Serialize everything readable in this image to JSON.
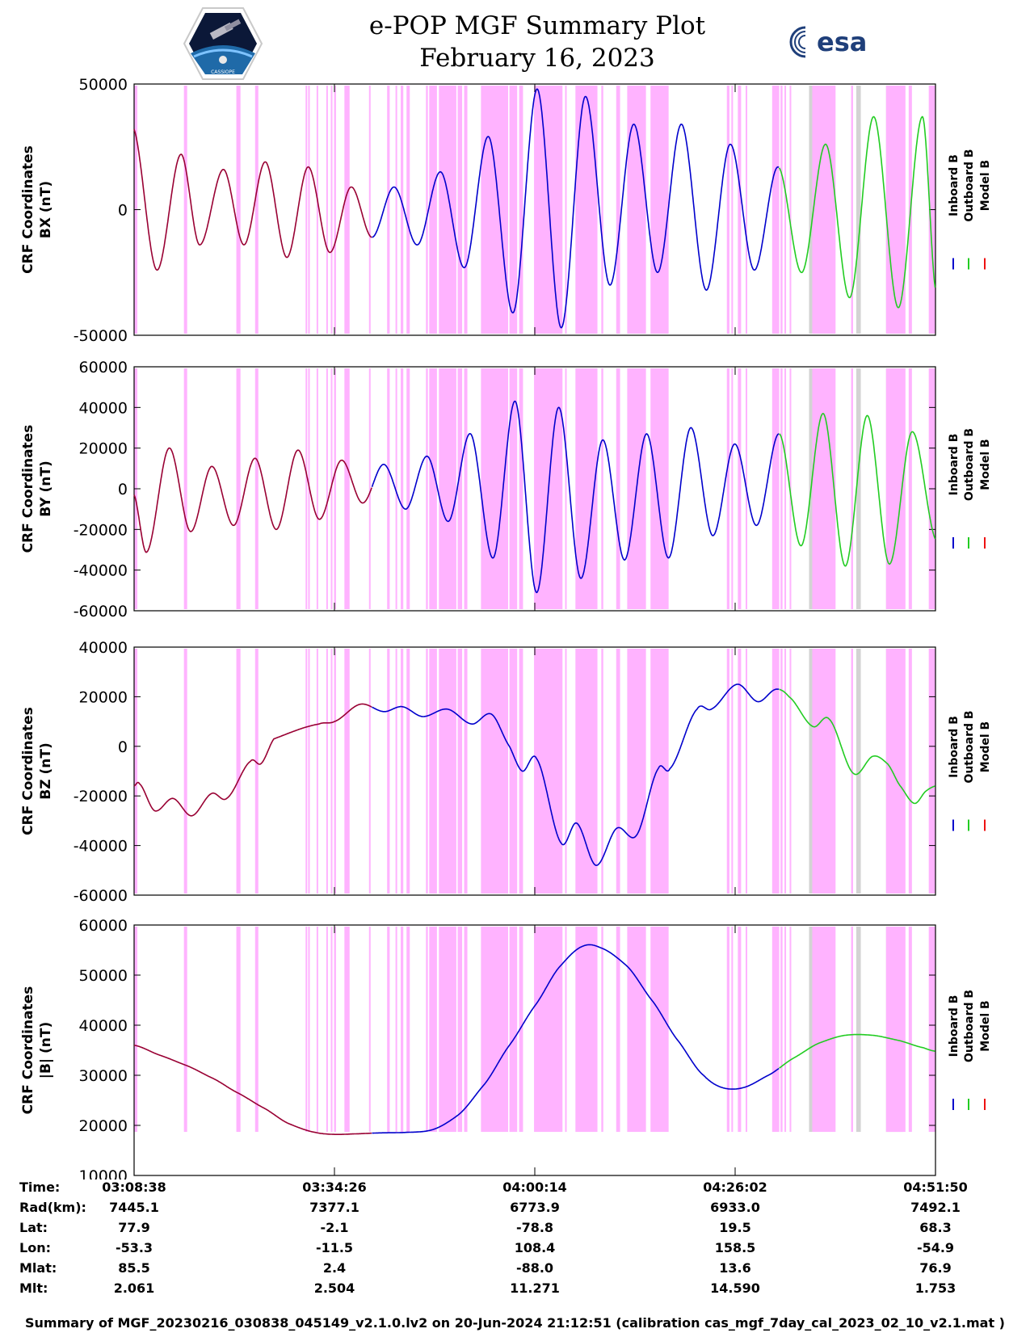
{
  "header": {
    "title_line1": "e-POP MGF Summary Plot",
    "title_line2": "February 16, 2023",
    "logo_left_text": "CASSIOPE",
    "logo_right_text": "esa"
  },
  "colors": {
    "inboard": "#0000cc",
    "outboard": "#22cc22",
    "model": "#ee1111",
    "model_overlay": "#990033",
    "highlight_magenta": "#ffb3ff",
    "highlight_gray": "#d3d3d3"
  },
  "chart_data": {
    "type": "line",
    "x_range_seconds": [
      0,
      6192
    ],
    "x_ticks": [
      {
        "t": 0,
        "label": "03:08:38"
      },
      {
        "t": 1548,
        "label": "03:34:26"
      },
      {
        "t": 3096,
        "label": "04:00:14"
      },
      {
        "t": 4644,
        "label": "04:26:02"
      },
      {
        "t": 6192,
        "label": "04:51:50"
      }
    ],
    "legend": [
      "Inboard B",
      "Outboard B",
      "Model B"
    ],
    "segments": [
      {
        "series": "Model B (overlay)",
        "t_start": 0,
        "t_end": 1838
      },
      {
        "series": "Inboard B",
        "t_start": 1838,
        "t_end": 4985
      },
      {
        "series": "Outboard B",
        "t_start": 4985,
        "t_end": 6192
      }
    ],
    "highlight_bands": [
      {
        "t": [
          0,
          25
        ],
        "color": "magenta"
      },
      {
        "t": [
          385,
          410
        ],
        "color": "magenta"
      },
      {
        "t": [
          790,
          822
        ],
        "color": "magenta"
      },
      {
        "t": [
          935,
          960
        ],
        "color": "magenta"
      },
      {
        "t": [
          1325,
          1335
        ],
        "color": "magenta"
      },
      {
        "t": [
          1345,
          1352
        ],
        "color": "magenta"
      },
      {
        "t": [
          1410,
          1420
        ],
        "color": "magenta"
      },
      {
        "t": [
          1485,
          1493
        ],
        "color": "magenta"
      },
      {
        "t": [
          1520,
          1530
        ],
        "color": "magenta"
      },
      {
        "t": [
          1545,
          1560
        ],
        "color": "magenta"
      },
      {
        "t": [
          1625,
          1665
        ],
        "color": "magenta"
      },
      {
        "t": [
          1815,
          1825
        ],
        "color": "magenta"
      },
      {
        "t": [
          1955,
          1975
        ],
        "color": "magenta"
      },
      {
        "t": [
          2020,
          2030
        ],
        "color": "magenta"
      },
      {
        "t": [
          2060,
          2080
        ],
        "color": "magenta"
      },
      {
        "t": [
          2105,
          2130
        ],
        "color": "magenta"
      },
      {
        "t": [
          2255,
          2270
        ],
        "color": "magenta"
      },
      {
        "t": [
          2280,
          2340
        ],
        "color": "magenta"
      },
      {
        "t": [
          2355,
          2490
        ],
        "color": "magenta"
      },
      {
        "t": [
          2500,
          2535
        ],
        "color": "magenta"
      },
      {
        "t": [
          2550,
          2575
        ],
        "color": "magenta"
      },
      {
        "t": [
          2680,
          2890
        ],
        "color": "magenta"
      },
      {
        "t": [
          2900,
          2960
        ],
        "color": "magenta"
      },
      {
        "t": [
          2975,
          3005
        ],
        "color": "magenta"
      },
      {
        "t": [
          3090,
          3310
        ],
        "color": "magenta"
      },
      {
        "t": [
          3330,
          3340
        ],
        "color": "magenta"
      },
      {
        "t": [
          3410,
          3580
        ],
        "color": "magenta"
      },
      {
        "t": [
          3610,
          3625
        ],
        "color": "magenta"
      },
      {
        "t": [
          3725,
          3755
        ],
        "color": "magenta"
      },
      {
        "t": [
          3810,
          3955
        ],
        "color": "magenta"
      },
      {
        "t": [
          3990,
          4130
        ],
        "color": "magenta"
      },
      {
        "t": [
          4580,
          4600
        ],
        "color": "magenta"
      },
      {
        "t": [
          4615,
          4625
        ],
        "color": "magenta"
      },
      {
        "t": [
          4665,
          4690
        ],
        "color": "magenta"
      },
      {
        "t": [
          4725,
          4735
        ],
        "color": "magenta"
      },
      {
        "t": [
          4930,
          4985
        ],
        "color": "magenta"
      },
      {
        "t": [
          4995,
          5010
        ],
        "color": "magenta"
      },
      {
        "t": [
          5025,
          5035
        ],
        "color": "magenta"
      },
      {
        "t": [
          5065,
          5072
        ],
        "color": "magenta"
      },
      {
        "t": [
          5215,
          5240
        ],
        "color": "gray"
      },
      {
        "t": [
          5240,
          5420
        ],
        "color": "magenta"
      },
      {
        "t": [
          5540,
          5555
        ],
        "color": "magenta"
      },
      {
        "t": [
          5580,
          5615
        ],
        "color": "gray"
      },
      {
        "t": [
          5810,
          5945
        ],
        "color": "gray"
      },
      {
        "t": [
          5810,
          5960
        ],
        "color": "magenta"
      },
      {
        "t": [
          5985,
          6010
        ],
        "color": "magenta"
      },
      {
        "t": [
          6140,
          6192
        ],
        "color": "magenta"
      }
    ],
    "panels": [
      {
        "name": "bx",
        "ylabel_line1": "CRF Coordinates",
        "ylabel_line2": "BX (nT)",
        "ylim": [
          -50000,
          50000
        ],
        "yticks": [
          50000,
          0,
          -50000
        ],
        "ytick_labels": [
          "50000",
          "0",
          "-50000"
        ],
        "points": [
          [
            0,
            32000
          ],
          [
            175,
            -24000
          ],
          [
            360,
            22000
          ],
          [
            505,
            -14000
          ],
          [
            690,
            16000
          ],
          [
            850,
            -14000
          ],
          [
            1015,
            19000
          ],
          [
            1180,
            -19000
          ],
          [
            1345,
            17000
          ],
          [
            1510,
            -17000
          ],
          [
            1675,
            9000
          ],
          [
            1838,
            -11000
          ],
          [
            2010,
            9000
          ],
          [
            2190,
            -14000
          ],
          [
            2370,
            15000
          ],
          [
            2555,
            -23000
          ],
          [
            2740,
            29000
          ],
          [
            2930,
            -41000
          ],
          [
            3115,
            48000
          ],
          [
            3300,
            -47000
          ],
          [
            3485,
            45000
          ],
          [
            3675,
            -30000
          ],
          [
            3860,
            34000
          ],
          [
            4045,
            -25000
          ],
          [
            4230,
            34000
          ],
          [
            4420,
            -32000
          ],
          [
            4605,
            26000
          ],
          [
            4790,
            -24000
          ],
          [
            4975,
            17000
          ],
          [
            5160,
            -25000
          ],
          [
            5345,
            26000
          ],
          [
            5530,
            -35000
          ],
          [
            5715,
            37000
          ],
          [
            5905,
            -39000
          ],
          [
            6090,
            37000
          ],
          [
            6192,
            -32000
          ]
        ]
      },
      {
        "name": "by",
        "ylabel_line1": "CRF Coordinates",
        "ylabel_line2": "BY (nT)",
        "ylim": [
          -60000,
          60000
        ],
        "yticks": [
          60000,
          40000,
          20000,
          0,
          -20000,
          -40000,
          -60000
        ],
        "ytick_labels": [
          "60000",
          "40000",
          "20000",
          "0",
          "-20000",
          "-40000",
          "-60000"
        ],
        "points": [
          [
            0,
            -3000
          ],
          [
            100,
            -31000
          ],
          [
            270,
            20000
          ],
          [
            435,
            -21000
          ],
          [
            600,
            11000
          ],
          [
            770,
            -18000
          ],
          [
            935,
            15000
          ],
          [
            1100,
            -20000
          ],
          [
            1265,
            19000
          ],
          [
            1430,
            -15000
          ],
          [
            1600,
            14000
          ],
          [
            1765,
            -7000
          ],
          [
            1930,
            12000
          ],
          [
            2100,
            -10000
          ],
          [
            2265,
            16000
          ],
          [
            2430,
            -16000
          ],
          [
            2600,
            27000
          ],
          [
            2775,
            -34000
          ],
          [
            2945,
            43000
          ],
          [
            3110,
            -51000
          ],
          [
            3280,
            40000
          ],
          [
            3450,
            -44000
          ],
          [
            3620,
            24000
          ],
          [
            3790,
            -35000
          ],
          [
            3960,
            27000
          ],
          [
            4130,
            -34000
          ],
          [
            4300,
            30000
          ],
          [
            4470,
            -23000
          ],
          [
            4640,
            22000
          ],
          [
            4810,
            -18000
          ],
          [
            4985,
            27000
          ],
          [
            5155,
            -28000
          ],
          [
            5325,
            37000
          ],
          [
            5495,
            -38000
          ],
          [
            5665,
            36000
          ],
          [
            5835,
            -37000
          ],
          [
            6010,
            28000
          ],
          [
            6192,
            -25000
          ]
        ]
      },
      {
        "name": "bz",
        "ylabel_line1": "CRF Coordinates",
        "ylabel_line2": "BZ (nT)",
        "ylim": [
          -60000,
          40000
        ],
        "yticks": [
          40000,
          20000,
          0,
          -20000,
          -40000,
          -60000
        ],
        "ytick_labels": [
          "40000",
          "20000",
          "0",
          "-20000",
          "-40000",
          "-60000"
        ],
        "points": [
          [
            0,
            -16000
          ],
          [
            40,
            -15000
          ],
          [
            160,
            -26000
          ],
          [
            300,
            -21000
          ],
          [
            445,
            -28000
          ],
          [
            600,
            -19000
          ],
          [
            715,
            -21000
          ],
          [
            900,
            -6000
          ],
          [
            980,
            -7000
          ],
          [
            1080,
            3000
          ],
          [
            1430,
            9000
          ],
          [
            1548,
            10000
          ],
          [
            1750,
            17000
          ],
          [
            1930,
            14000
          ],
          [
            2070,
            16000
          ],
          [
            2230,
            12000
          ],
          [
            2420,
            15000
          ],
          [
            2610,
            9000
          ],
          [
            2760,
            13000
          ],
          [
            2900,
            0
          ],
          [
            3000,
            -10000
          ],
          [
            3110,
            -5000
          ],
          [
            3300,
            -39000
          ],
          [
            3420,
            -31000
          ],
          [
            3570,
            -48000
          ],
          [
            3730,
            -33000
          ],
          [
            3880,
            -36000
          ],
          [
            4050,
            -9000
          ],
          [
            4140,
            -9000
          ],
          [
            4350,
            15000
          ],
          [
            4460,
            15000
          ],
          [
            4660,
            25000
          ],
          [
            4820,
            18000
          ],
          [
            4960,
            23000
          ],
          [
            5060,
            20000
          ],
          [
            5245,
            8000
          ],
          [
            5370,
            11000
          ],
          [
            5560,
            -11000
          ],
          [
            5710,
            -4000
          ],
          [
            5820,
            -7000
          ],
          [
            5920,
            -16000
          ],
          [
            6030,
            -23000
          ],
          [
            6120,
            -18000
          ],
          [
            6192,
            -16000
          ]
        ]
      },
      {
        "name": "bmag",
        "ylabel_line1": "CRF Coordinates",
        "ylabel_line2": "|B| (nT)",
        "ylim": [
          10000,
          60000
        ],
        "yticks": [
          60000,
          50000,
          40000,
          30000,
          20000,
          10000
        ],
        "ytick_labels": [
          "60000",
          "50000",
          "40000",
          "30000",
          "20000",
          "10000"
        ],
        "points": [
          [
            0,
            36000
          ],
          [
            200,
            34000
          ],
          [
            400,
            32000
          ],
          [
            600,
            29500
          ],
          [
            800,
            26500
          ],
          [
            1000,
            23500
          ],
          [
            1200,
            20300
          ],
          [
            1400,
            18600
          ],
          [
            1548,
            18200
          ],
          [
            1700,
            18300
          ],
          [
            1900,
            18500
          ],
          [
            2100,
            18600
          ],
          [
            2300,
            19100
          ],
          [
            2500,
            22000
          ],
          [
            2700,
            28000
          ],
          [
            2900,
            36000
          ],
          [
            3100,
            44000
          ],
          [
            3300,
            52000
          ],
          [
            3470,
            55800
          ],
          [
            3600,
            55500
          ],
          [
            3800,
            52000
          ],
          [
            4000,
            45000
          ],
          [
            4200,
            37000
          ],
          [
            4400,
            30000
          ],
          [
            4550,
            27500
          ],
          [
            4700,
            27500
          ],
          [
            4900,
            30000
          ],
          [
            5100,
            33500
          ],
          [
            5300,
            36500
          ],
          [
            5500,
            38000
          ],
          [
            5700,
            38000
          ],
          [
            5900,
            37000
          ],
          [
            6100,
            35500
          ],
          [
            6192,
            34800
          ]
        ]
      }
    ],
    "info_table": {
      "rows": [
        {
          "label": "Time:",
          "values": [
            "03:08:38",
            "03:34:26",
            "04:00:14",
            "04:26:02",
            "04:51:50"
          ]
        },
        {
          "label": "Rad(km):",
          "values": [
            "7445.1",
            "7377.1",
            "6773.9",
            "6933.0",
            "7492.1"
          ]
        },
        {
          "label": "Lat:",
          "values": [
            "77.9",
            "-2.1",
            "-78.8",
            "19.5",
            "68.3"
          ]
        },
        {
          "label": "Lon:",
          "values": [
            "-53.3",
            "-11.5",
            "108.4",
            "158.5",
            "-54.9"
          ]
        },
        {
          "label": "Mlat:",
          "values": [
            "85.5",
            "2.4",
            "-88.0",
            "13.6",
            "76.9"
          ]
        },
        {
          "label": "Mlt:",
          "values": [
            "2.061",
            "2.504",
            "11.271",
            "14.590",
            "1.753"
          ]
        }
      ]
    }
  },
  "footer": {
    "text": "Summary of MGF_20230216_030838_045149_v2.1.0.lv2 on 20-Jun-2024 21:12:51 (calibration cas_mgf_7day_cal_2023_02_10_v2.1.mat )"
  }
}
